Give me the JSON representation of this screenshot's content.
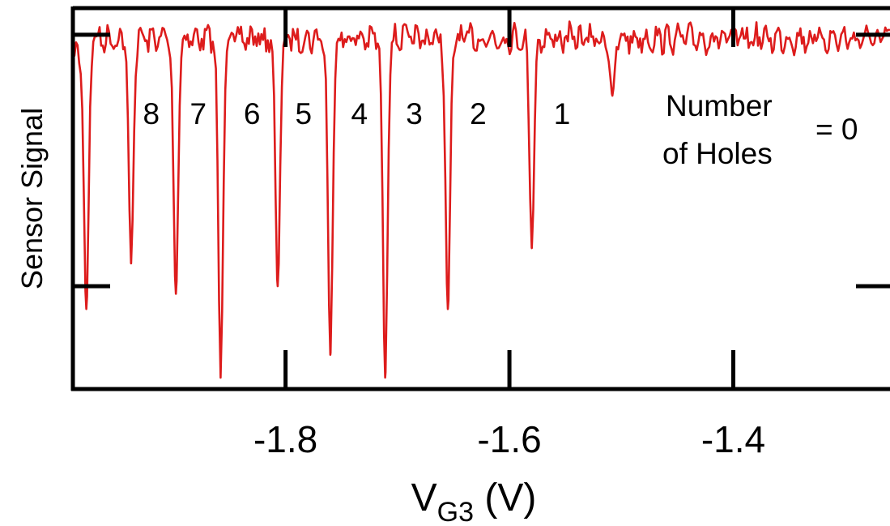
{
  "chart_data": {
    "type": "line",
    "title": "",
    "xlabel_main": "V",
    "xlabel_sub": "G3",
    "xlabel_unit": " (V)",
    "ylabel": "Sensor Signal",
    "xlim": [
      -1.99,
      -1.26
    ],
    "ylim": [
      0.0,
      1.0
    ],
    "y_scale": "arbitrary units",
    "grid": false,
    "x_ticks": [
      {
        "value": -1.8,
        "label": "-1.8"
      },
      {
        "value": -1.6,
        "label": "-1.6"
      },
      {
        "value": -1.4,
        "label": "-1.4"
      }
    ],
    "y_ticks": [
      0.27,
      0.93
    ],
    "series": [
      {
        "color": "#dd1c1c",
        "baseline": 0.955,
        "dips": [
          {
            "x": -1.978,
            "y": 0.21
          },
          {
            "x": -1.938,
            "y": 0.33
          },
          {
            "x": -1.898,
            "y": 0.25
          },
          {
            "x": -1.858,
            "y": 0.03
          },
          {
            "x": -1.807,
            "y": 0.27
          },
          {
            "x": -1.76,
            "y": 0.09
          },
          {
            "x": -1.711,
            "y": 0.03
          },
          {
            "x": -1.655,
            "y": 0.21
          },
          {
            "x": -1.58,
            "y": 0.37
          },
          {
            "x": -1.508,
            "y": 0.77
          }
        ]
      }
    ],
    "charge_labels": [
      {
        "x": -1.92,
        "label": "8"
      },
      {
        "x": -1.878,
        "label": "7"
      },
      {
        "x": -1.83,
        "label": "6"
      },
      {
        "x": -1.784,
        "label": "5"
      },
      {
        "x": -1.734,
        "label": "4"
      },
      {
        "x": -1.685,
        "label": "3"
      },
      {
        "x": -1.628,
        "label": "2"
      },
      {
        "x": -1.553,
        "label": "1"
      }
    ],
    "annotation": {
      "line1": "Number",
      "line2": "of Holes",
      "value": "= 0"
    }
  }
}
